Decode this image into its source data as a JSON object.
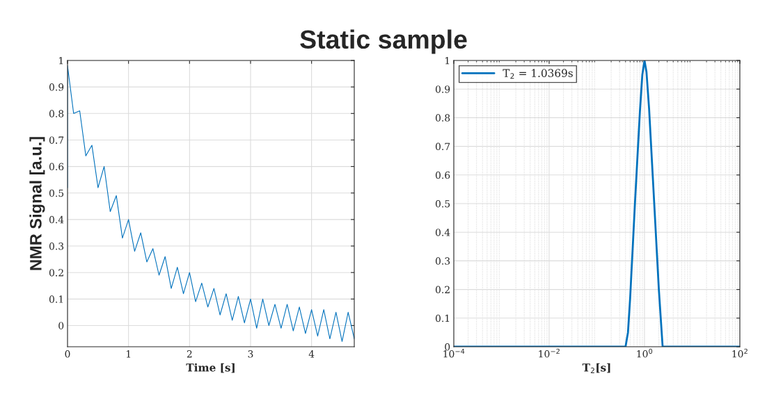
{
  "chart_data": [
    {
      "type": "line",
      "title": "Static sample",
      "xlabel": "Time [s]",
      "ylabel": "NMR Signal [a.u.]",
      "x": [
        0,
        0,
        0.1,
        0.2,
        0.3,
        0.4,
        0.5,
        0.6,
        0.7,
        0.8,
        0.9,
        1.0,
        1.1,
        1.2,
        1.3,
        1.4,
        1.5,
        1.6,
        1.7,
        1.8,
        1.9,
        2.0,
        2.1,
        2.2,
        2.3,
        2.4,
        2.5,
        2.6,
        2.7,
        2.8,
        2.9,
        3.0,
        3.1,
        3.2,
        3.3,
        3.4,
        3.5,
        3.6,
        3.7,
        3.8,
        3.9,
        4.0,
        4.1,
        4.2,
        4.3,
        4.4,
        4.5,
        4.6,
        4.7
      ],
      "series": [
        {
          "color": "#0072bd",
          "values": [
            0.52,
            0.98,
            0.8,
            0.81,
            0.64,
            0.68,
            0.52,
            0.6,
            0.43,
            0.49,
            0.33,
            0.4,
            0.28,
            0.35,
            0.24,
            0.29,
            0.19,
            0.26,
            0.14,
            0.22,
            0.12,
            0.2,
            0.09,
            0.16,
            0.07,
            0.14,
            0.04,
            0.12,
            0.02,
            0.11,
            0.01,
            0.1,
            -0.01,
            0.1,
            0.0,
            0.08,
            -0.01,
            0.08,
            -0.02,
            0.07,
            -0.03,
            0.06,
            -0.04,
            0.06,
            -0.05,
            0.05,
            -0.06,
            0.05,
            -0.05
          ]
        }
      ],
      "xlim": [
        0,
        4.7
      ],
      "ylim": [
        -0.08,
        1
      ],
      "xticks": [
        0,
        1,
        2,
        3,
        4
      ],
      "yticks": [
        0,
        0.1,
        0.2,
        0.3,
        0.4,
        0.5,
        0.6,
        0.7,
        0.8,
        0.9,
        1
      ],
      "grid": true,
      "legend": false,
      "line_style": "solid",
      "marker": "none"
    },
    {
      "type": "line",
      "xlabel": "T$_{2}$[s]",
      "log": "x",
      "x": [
        0.0001,
        0.4,
        0.45,
        0.5,
        0.63,
        0.8,
        0.9,
        1.0,
        1.1,
        1.25,
        1.6,
        2.0,
        2.4,
        100
      ],
      "series": [
        {
          "name": "T$_{2}$ = 1.0369s",
          "color": "#0072bd",
          "values": [
            0,
            0,
            0.05,
            0.17,
            0.5,
            0.82,
            0.95,
            1.0,
            0.96,
            0.83,
            0.5,
            0.2,
            0,
            0
          ]
        }
      ],
      "xlim": [
        0.0001,
        100
      ],
      "ylim": [
        0,
        1
      ],
      "xticks": [
        {
          "value": 0.0001,
          "label": "10$^{−4}$"
        },
        {
          "value": 0.01,
          "label": "10$^{−2}$"
        },
        {
          "value": 1,
          "label": "10$^{0}$"
        },
        {
          "value": 100,
          "label": "10$^{2}$"
        }
      ],
      "yticks": [
        0,
        0.1,
        0.2,
        0.3,
        0.4,
        0.5,
        0.6,
        0.7,
        0.8,
        0.9,
        1
      ],
      "grid": true,
      "legend": "top left",
      "line_style": "solid",
      "marker": "none"
    }
  ]
}
